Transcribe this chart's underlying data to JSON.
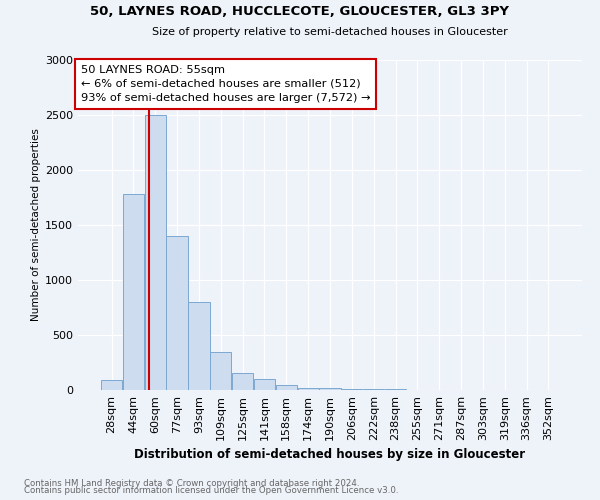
{
  "title": "50, LAYNES ROAD, HUCCLECOTE, GLOUCESTER, GL3 3PY",
  "subtitle": "Size of property relative to semi-detached houses in Gloucester",
  "xlabel": "Distribution of semi-detached houses by size in Gloucester",
  "ylabel": "Number of semi-detached properties",
  "bin_labels": [
    "28sqm",
    "44sqm",
    "60sqm",
    "77sqm",
    "93sqm",
    "109sqm",
    "125sqm",
    "141sqm",
    "158sqm",
    "174sqm",
    "190sqm",
    "206sqm",
    "222sqm",
    "238sqm",
    "255sqm",
    "271sqm",
    "287sqm",
    "303sqm",
    "319sqm",
    "336sqm",
    "352sqm"
  ],
  "bar_values": [
    92,
    1780,
    2500,
    1400,
    800,
    350,
    155,
    100,
    45,
    20,
    15,
    10,
    8,
    5,
    3,
    2,
    1,
    1,
    1,
    0,
    0
  ],
  "bar_color": "#cddcef",
  "bar_edge_color": "#7aa8d2",
  "annotation_title": "50 LAYNES ROAD: 55sqm",
  "annotation_line1": "← 6% of semi-detached houses are smaller (512)",
  "annotation_line2": "93% of semi-detached houses are larger (7,572) →",
  "annotation_box_color": "#ffffff",
  "annotation_box_edge": "#cc0000",
  "vline_color": "#cc0000",
  "ylim": [
    0,
    3000
  ],
  "yticks": [
    0,
    500,
    1000,
    1500,
    2000,
    2500,
    3000
  ],
  "footer1": "Contains HM Land Registry data © Crown copyright and database right 2024.",
  "footer2": "Contains public sector information licensed under the Open Government Licence v3.0.",
  "bg_color": "#eef2f9",
  "plot_bg_color": "#eef2f9",
  "vline_x_idx": 1.72
}
